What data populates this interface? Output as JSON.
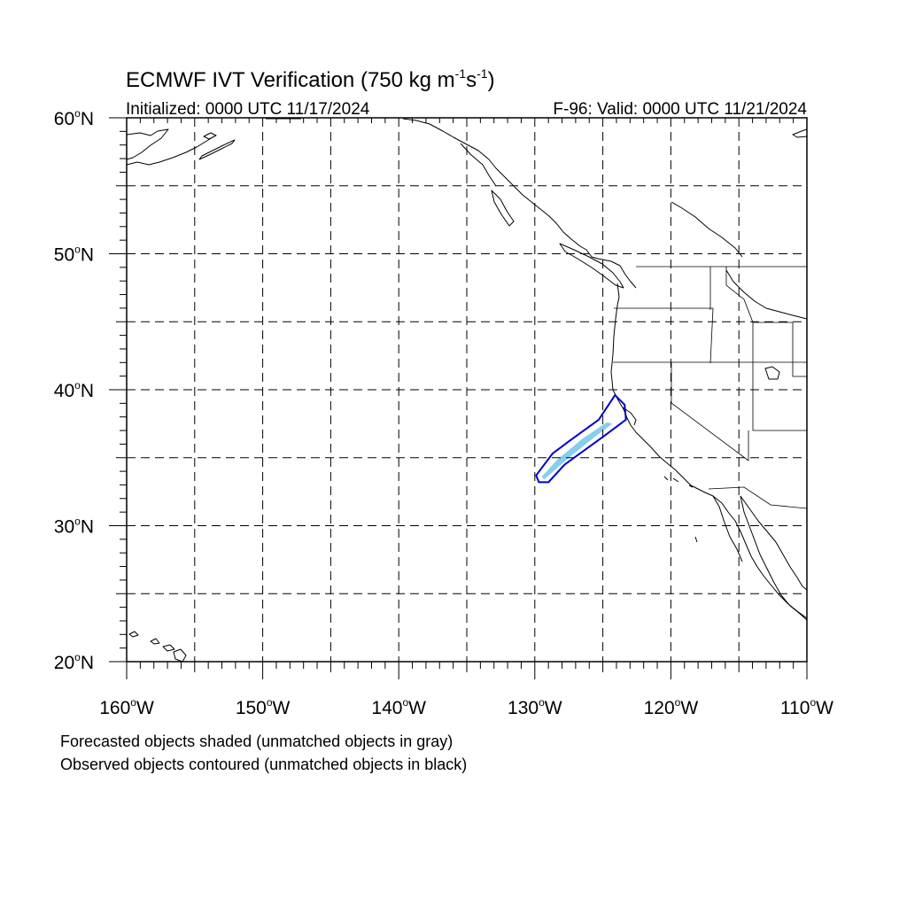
{
  "title": "ECMWF IVT Verification (750 kg m",
  "title_sup1": "-1",
  "title_mid": "s",
  "title_sup2": "-1",
  "title_end": ")",
  "init_label": "Initialized: 0000 UTC 11/17/2024",
  "valid_label": "F-96: Valid: 0000 UTC 11/21/2024",
  "lat_labels": [
    {
      "deg": "60",
      "hem": "N",
      "lat": 60
    },
    {
      "deg": "50",
      "hem": "N",
      "lat": 50
    },
    {
      "deg": "40",
      "hem": "N",
      "lat": 40
    },
    {
      "deg": "30",
      "hem": "N",
      "lat": 30
    },
    {
      "deg": "20",
      "hem": "N",
      "lat": 20
    }
  ],
  "lon_labels": [
    {
      "deg": "160",
      "hem": "W",
      "lon": -160
    },
    {
      "deg": "150",
      "hem": "W",
      "lon": -150
    },
    {
      "deg": "140",
      "hem": "W",
      "lon": -140
    },
    {
      "deg": "130",
      "hem": "W",
      "lon": -130
    },
    {
      "deg": "120",
      "hem": "W",
      "lon": -120
    },
    {
      "deg": "110",
      "hem": "W",
      "lon": -110
    }
  ],
  "legend": {
    "line1": "Forecasted objects shaded (unmatched objects in gray)",
    "line2": "Observed objects contoured (unmatched objects in black)"
  },
  "colors": {
    "forecast_fill": "#87ceeb",
    "observed_contour": "#0000cd",
    "coastline": "#000000"
  },
  "map_extent": {
    "lon_min": -160,
    "lon_max": -110,
    "lat_min": 20,
    "lat_max": 60
  },
  "forecast_object": [
    [
      -129.3,
      33.4
    ],
    [
      -127.5,
      35.0
    ],
    [
      -125.5,
      36.6
    ],
    [
      -124.3,
      37.5
    ],
    [
      -124.7,
      37.6
    ],
    [
      -126.5,
      36.4
    ],
    [
      -128.3,
      34.9
    ],
    [
      -129.5,
      33.6
    ]
  ],
  "observed_object": [
    [
      -129.7,
      33.2
    ],
    [
      -129.9,
      33.7
    ],
    [
      -128.7,
      35.3
    ],
    [
      -127.5,
      36.2
    ],
    [
      -125.3,
      37.8
    ],
    [
      -124.1,
      39.6
    ],
    [
      -123.4,
      38.9
    ],
    [
      -123.3,
      37.8
    ],
    [
      -124.9,
      36.6
    ],
    [
      -127.8,
      34.5
    ],
    [
      -129.0,
      33.2
    ]
  ]
}
